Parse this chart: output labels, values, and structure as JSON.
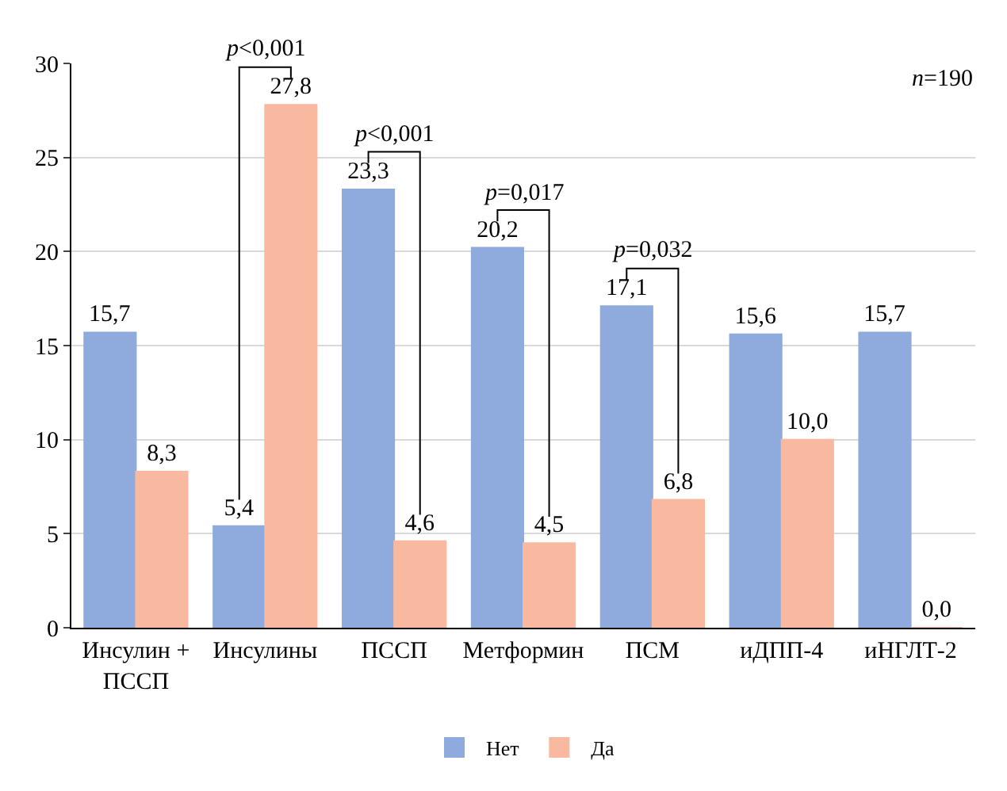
{
  "chart_data": {
    "type": "bar",
    "categories": [
      "Инсулин +\nПССП",
      "Инсулины",
      "ПССП",
      "Метформин",
      "ПСМ",
      "иДПП-4",
      "иНГЛТ-2"
    ],
    "series": [
      {
        "name": "Нет",
        "color": "#8faadc",
        "values": [
          15.7,
          5.4,
          23.3,
          20.2,
          17.1,
          15.6,
          15.7
        ],
        "value_labels": [
          "15,7",
          "5,4",
          "23,3",
          "20,2",
          "17,1",
          "15,6",
          "15,7"
        ]
      },
      {
        "name": "Да",
        "color": "#f8b9a0",
        "values": [
          8.3,
          27.8,
          4.6,
          4.5,
          6.8,
          10.0,
          0.0
        ],
        "value_labels": [
          "8,3",
          "27,8",
          "4,6",
          "4,5",
          "6,8",
          "10,0",
          "0,0"
        ]
      }
    ],
    "ylim": [
      0,
      30
    ],
    "yticks": [
      0,
      5,
      10,
      15,
      20,
      25,
      30
    ],
    "grid": "y",
    "legend": "bottom",
    "annotations": [
      "p<0,001",
      "p<0,001",
      "p=0,017",
      "p=0,032",
      "n=190"
    ]
  }
}
